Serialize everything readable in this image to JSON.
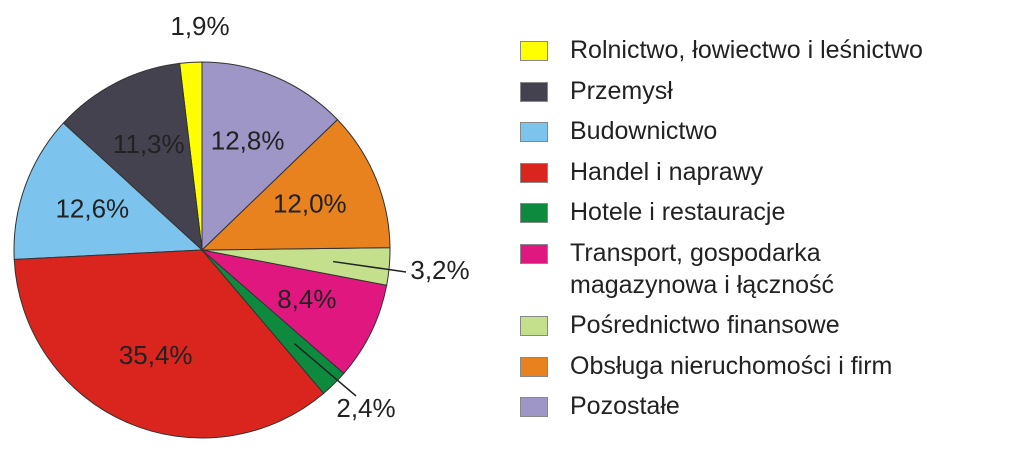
{
  "chart_data": {
    "type": "pie",
    "categories": [
      "Rolnictwo, łowiectwo i leśnictwo",
      "Przemysł",
      "Budownictwo",
      "Handel i naprawy",
      "Hotele i restauracje",
      "Transport, gospodarka magazynowa i łączność",
      "Pośrednictwo finansowe",
      "Obsługa nieruchomości i firm",
      "Pozostałe"
    ],
    "values": [
      1.9,
      11.3,
      12.6,
      35.4,
      2.4,
      8.4,
      3.2,
      12.0,
      12.8
    ],
    "value_labels": [
      "1,9%",
      "11,3%",
      "12,6%",
      "35,4%",
      "2,4%",
      "8,4%",
      "3,2%",
      "12,0%",
      "12,8%"
    ],
    "colors": [
      "#ffff00",
      "#45424f",
      "#7cc4ee",
      "#d9251d",
      "#0d8a3e",
      "#e0177f",
      "#c4e08c",
      "#e8821e",
      "#9d96c6"
    ]
  }
}
